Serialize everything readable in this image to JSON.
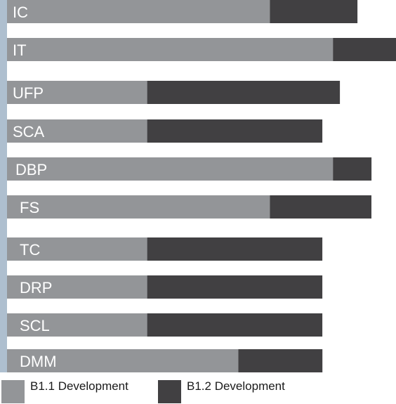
{
  "chart_data": {
    "type": "bar",
    "orientation": "horizontal",
    "stacked": true,
    "categories": [
      "IC",
      "IT",
      "UFP",
      "SCA",
      "DBP",
      "FS",
      "TC",
      "DRP",
      "SCL",
      "DMM"
    ],
    "series": [
      {
        "name": "B1.1 Development",
        "color": "#939598",
        "values": [
          7.5,
          9.3,
          4.0,
          4.0,
          9.3,
          7.5,
          4.0,
          4.0,
          4.0,
          6.6
        ]
      },
      {
        "name": "B1.2 Development",
        "color": "#414042",
        "values": [
          2.5,
          1.8,
          5.5,
          5.0,
          1.1,
          2.9,
          5.0,
          5.0,
          5.0,
          2.4
        ]
      }
    ],
    "xlim": [
      0,
      11.1
    ],
    "grid": false,
    "legend_position": "bottom-left",
    "axis_color": "#aebfcf"
  }
}
